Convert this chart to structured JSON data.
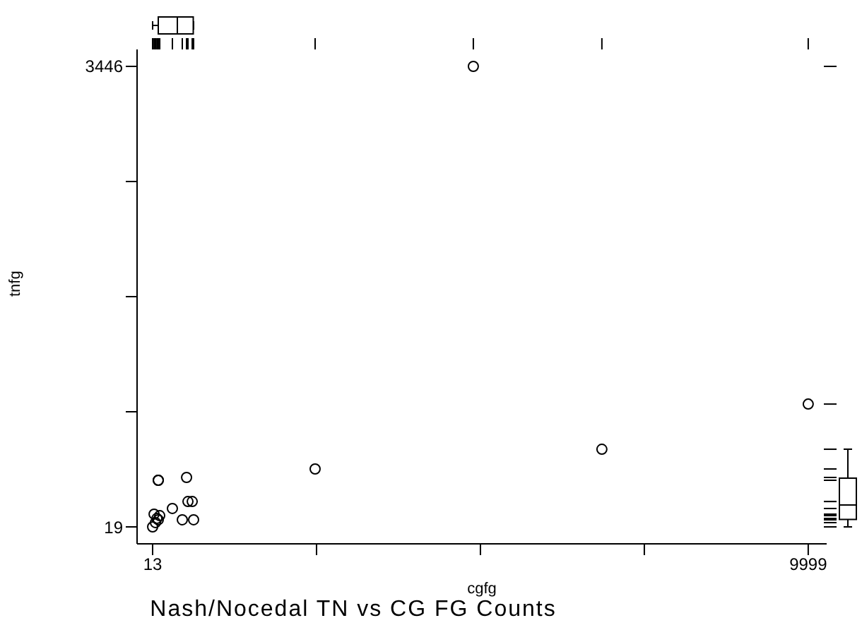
{
  "chart_data": {
    "type": "scatter",
    "title": "Nash/Nocedal TN vs CG FG Counts",
    "xlabel": "cgfg",
    "ylabel": "tnfg",
    "x": [
      13,
      56,
      78,
      99,
      121,
      35,
      99,
      314,
      465,
      637,
      551,
      616,
      99,
      530,
      2488,
      4898,
      6856,
      9999
    ],
    "values": [
      19,
      51,
      82,
      72,
      103,
      114,
      366,
      156,
      72,
      72,
      208,
      208,
      366,
      387,
      450,
      3446,
      597,
      933
    ],
    "color": "#000000",
    "marker": "circle",
    "xlim": [
      -224,
      10280
    ],
    "xticks": [
      13,
      {
        "value": 2509.5,
        "label": null
      },
      {
        "value": 5006,
        "label": null
      },
      {
        "value": 7502.5,
        "label": null
      },
      9999
    ],
    "ylim": [
      -107,
      3572
    ],
    "yticks": [
      19,
      {
        "value": 875.75,
        "label": null
      },
      {
        "value": 1732.5,
        "label": null
      },
      {
        "value": 2589.25,
        "label": null
      },
      3446
    ],
    "grid": false,
    "legend": false
  }
}
